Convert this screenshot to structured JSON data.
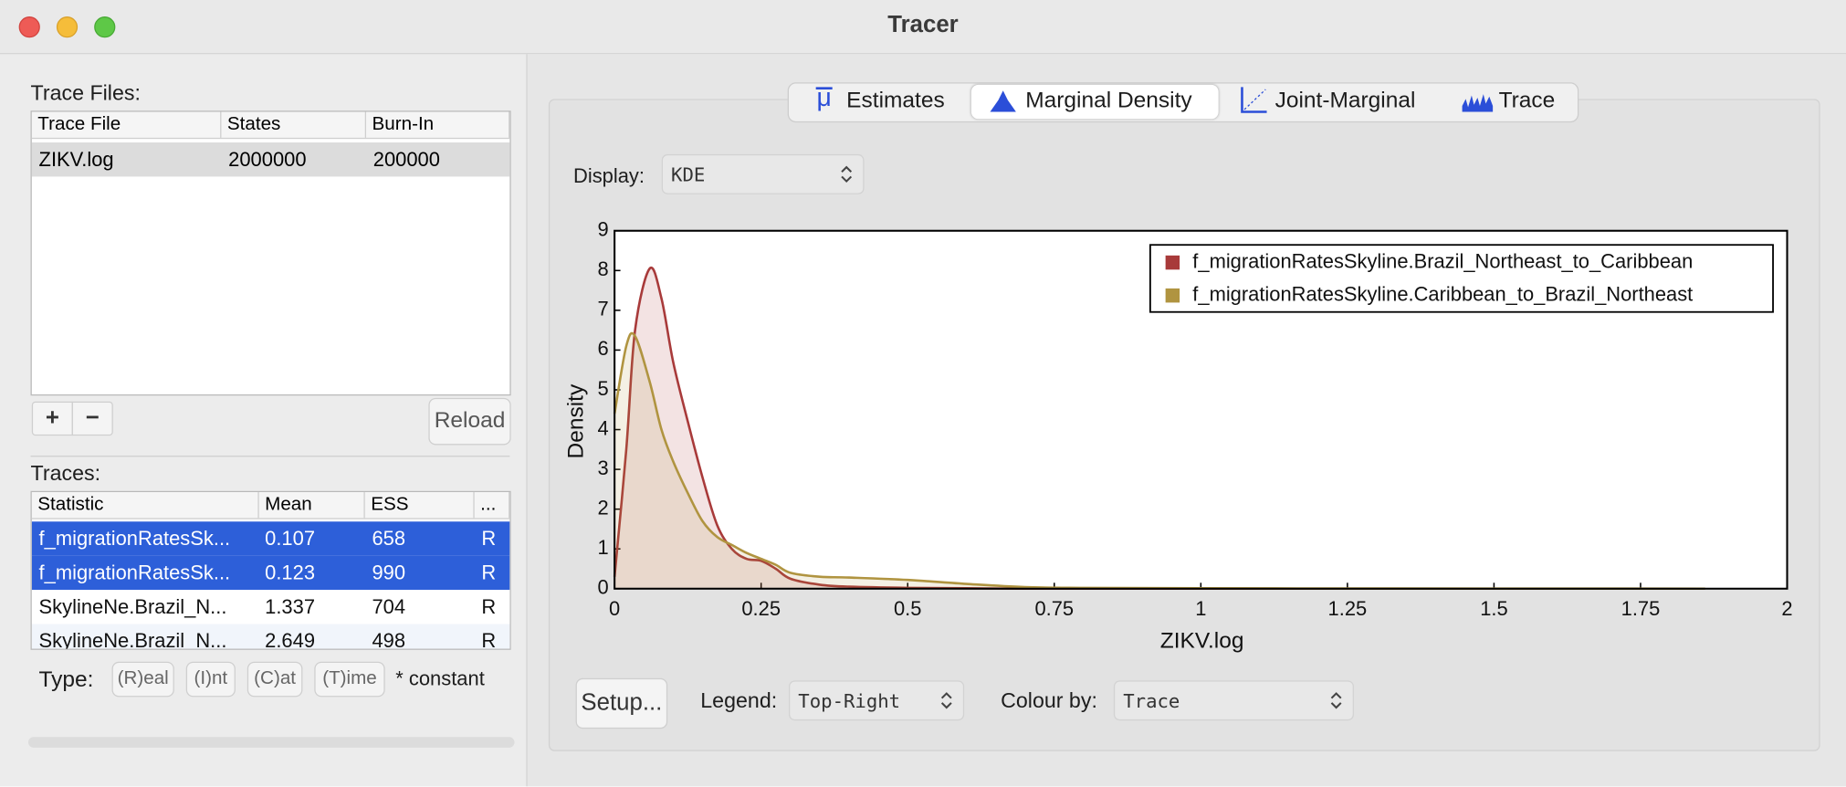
{
  "window": {
    "title": "Tracer"
  },
  "trace_files": {
    "label": "Trace Files:",
    "headers": [
      "Trace File",
      "States",
      "Burn-In"
    ],
    "rows": [
      [
        "ZIKV.log",
        "2000000",
        "200000"
      ]
    ],
    "add": "+",
    "remove": "−",
    "reload": "Reload"
  },
  "traces": {
    "label": "Traces:",
    "headers": [
      "Statistic",
      "Mean",
      "ESS",
      "..."
    ],
    "rows": [
      [
        "f_migrationRatesSk...",
        "0.107",
        "658",
        "R"
      ],
      [
        "f_migrationRatesSk...",
        "0.123",
        "990",
        "R"
      ],
      [
        "SkylineNe.Brazil_N...",
        "1.337",
        "704",
        "R"
      ],
      [
        "SkylineNe.Brazil_N...",
        "2.649",
        "498",
        "R"
      ]
    ]
  },
  "type_bar": {
    "label": "Type:",
    "options": [
      "(R)eal",
      "(I)nt",
      "(C)at",
      "(T)ime"
    ],
    "note": "* constant"
  },
  "tabs": [
    "Estimates",
    "Marginal Density",
    "Joint-Marginal",
    "Trace"
  ],
  "display": {
    "label": "Display:",
    "value": "KDE"
  },
  "footer": {
    "setup": "Setup...",
    "legend_label": "Legend:",
    "colour_label": "Colour by:",
    "colour_value": "Trace"
  },
  "chart_data": {
    "type": "line",
    "y_label": "Density",
    "x_label": "ZIKV.log",
    "x": [
      0,
      0.02,
      0.035,
      0.06,
      0.08,
      0.1,
      0.125,
      0.15,
      0.175,
      0.2,
      0.225,
      0.25,
      0.275,
      0.3,
      0.35,
      0.4,
      0.5,
      0.6,
      0.7,
      0.8,
      1,
      1.25,
      1.5,
      1.86
    ],
    "series": [
      {
        "name": "f_migrationRatesSkyline.Brazil_Northeast_to_Caribbean",
        "color": "#a83a3a",
        "values": [
          0.3,
          3.5,
          6.5,
          8.05,
          7.3,
          5.7,
          4.2,
          2.8,
          1.6,
          1.0,
          0.75,
          0.7,
          0.5,
          0.25,
          0.1,
          0.05,
          0.02,
          0.01,
          0,
          0,
          0,
          0,
          0,
          0
        ]
      },
      {
        "name": "f_migrationRatesSkyline.Caribbean_to_Brazil_Northeast",
        "color": "#b09440",
        "values": [
          4.4,
          6.1,
          6.35,
          5.2,
          4.0,
          3.2,
          2.4,
          1.7,
          1.3,
          1.1,
          0.9,
          0.75,
          0.6,
          0.4,
          0.3,
          0.28,
          0.22,
          0.12,
          0.04,
          0.02,
          0.01,
          0.005,
          0.003,
          0
        ]
      }
    ],
    "xlim": [
      0,
      2
    ],
    "ylim": [
      0,
      9
    ],
    "xticks": [
      0,
      0.25,
      0.5,
      0.75,
      1,
      1.25,
      1.5,
      1.75,
      2
    ],
    "yticks": [
      0,
      1,
      2,
      3,
      4,
      5,
      6,
      7,
      8,
      9
    ],
    "legend": "Top-Right"
  }
}
